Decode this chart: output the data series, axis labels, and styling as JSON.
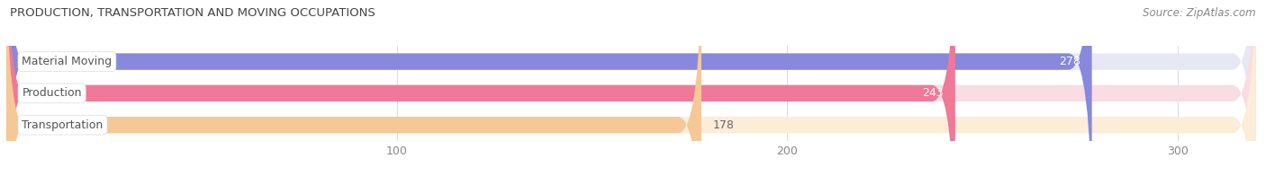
{
  "title": "PRODUCTION, TRANSPORTATION AND MOVING OCCUPATIONS",
  "source": "Source: ZipAtlas.com",
  "categories": [
    "Material Moving",
    "Production",
    "Transportation"
  ],
  "values": [
    278,
    243,
    178
  ],
  "bar_colors": [
    "#8888dd",
    "#f07898",
    "#f5c896"
  ],
  "bg_colors": [
    "#e8e8f4",
    "#f9dce4",
    "#fcecd8"
  ],
  "xlim_max": 320,
  "xticks": [
    100,
    200,
    300
  ],
  "bar_height": 0.52,
  "figsize": [
    14.06,
    1.96
  ],
  "dpi": 100,
  "bg_color": "#ffffff",
  "value_label_inside_color": "white",
  "value_label_outside_color": "#666666",
  "cat_label_color": "#555555",
  "title_color": "#444444",
  "source_color": "#888888"
}
